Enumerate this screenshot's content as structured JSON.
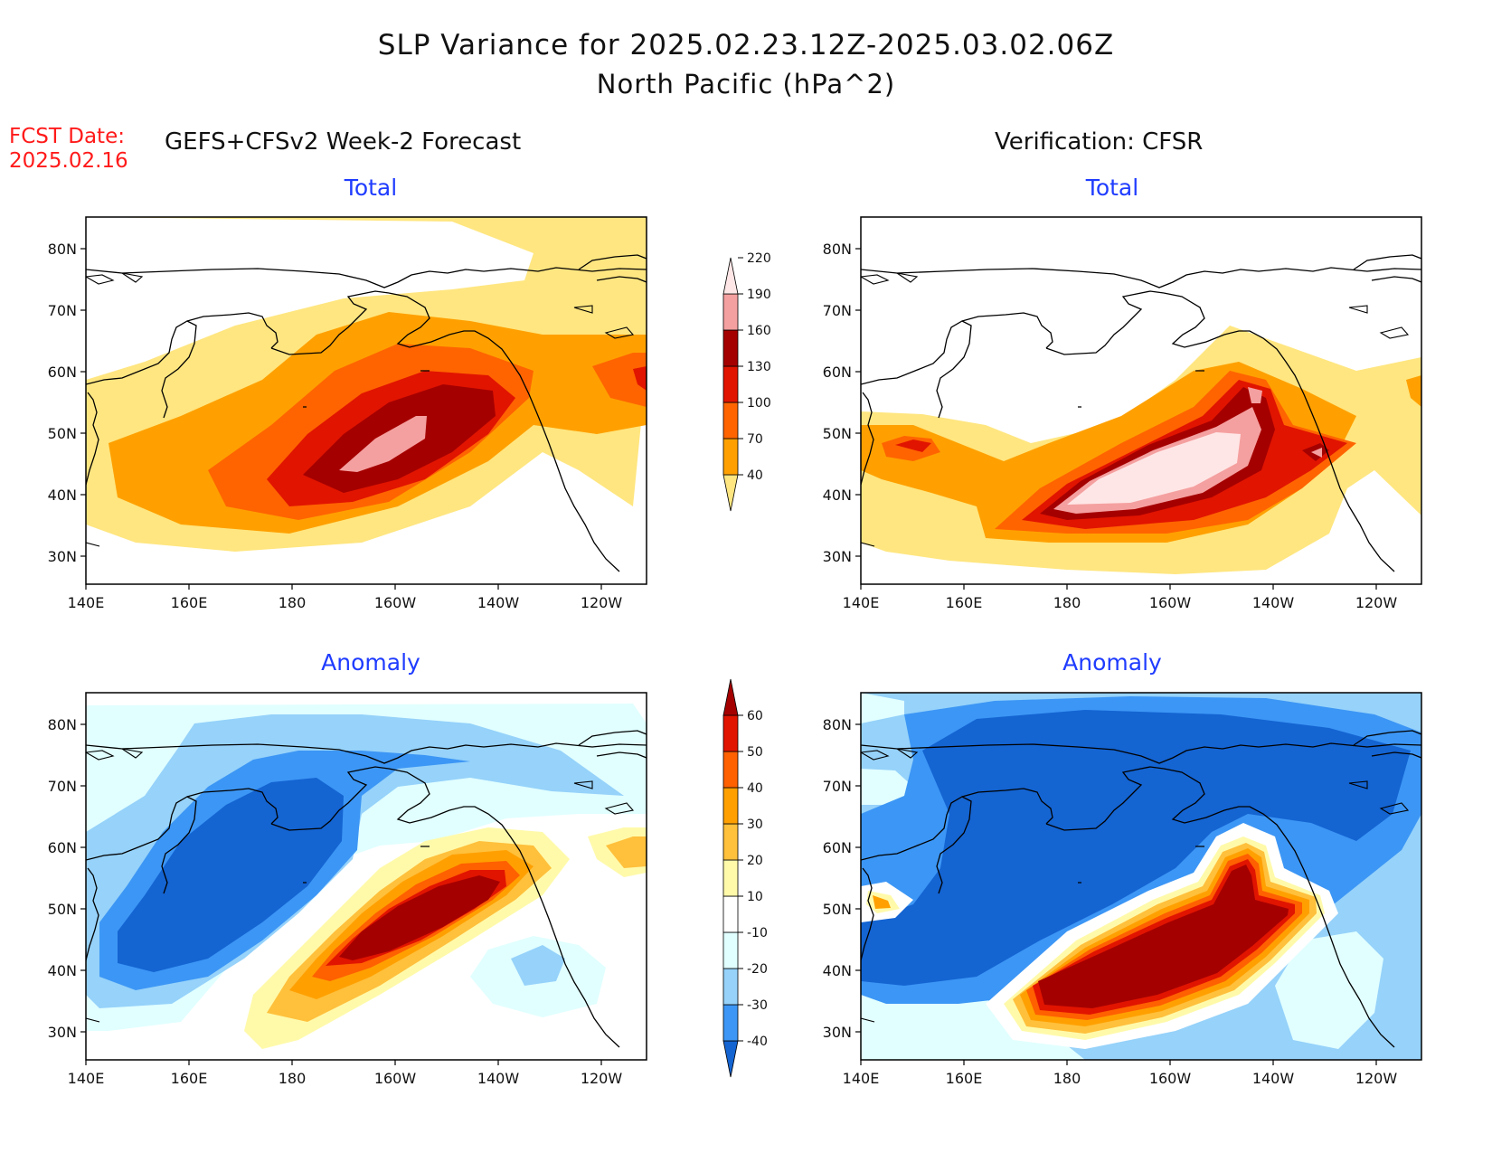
{
  "title": {
    "line1": "SLP Variance for 2025.02.23.12Z-2025.03.02.06Z",
    "line2": "North Pacific (hPa^2)"
  },
  "fcst_date": {
    "label": "FCST Date:",
    "value": "2025.02.16"
  },
  "columns": {
    "forecast": "GEFS+CFSv2 Week-2 Forecast",
    "verification": "Verification: CFSR"
  },
  "panel_titles": {
    "total_fcst": "Total",
    "total_verif": "Total",
    "anom_fcst": "Anomaly",
    "anom_verif": "Anomaly"
  },
  "axes": {
    "lat_labels": [
      "80N",
      "70N",
      "60N",
      "50N",
      "40N",
      "30N"
    ],
    "lon_labels": [
      "140E",
      "160E",
      "180",
      "160W",
      "140W",
      "120W"
    ]
  },
  "colorbars": {
    "total": {
      "levels": [
        "40",
        "70",
        "100",
        "130",
        "160",
        "190",
        "220"
      ],
      "colors": [
        "#ffe680",
        "#ffa000",
        "#ff6400",
        "#e11400",
        "#a50000",
        "#f5a0a0",
        "#ffe6e6"
      ]
    },
    "anomaly": {
      "levels": [
        "-40",
        "-30",
        "-20",
        "-10",
        "10",
        "20",
        "30",
        "40",
        "50",
        "60"
      ],
      "colors": [
        "#1464d2",
        "#3c96f5",
        "#96d2fa",
        "#e1ffff",
        "#ffffff",
        "#fffaaa",
        "#ffc03c",
        "#ffa000",
        "#ff6000",
        "#e11400",
        "#a50000"
      ]
    }
  }
}
